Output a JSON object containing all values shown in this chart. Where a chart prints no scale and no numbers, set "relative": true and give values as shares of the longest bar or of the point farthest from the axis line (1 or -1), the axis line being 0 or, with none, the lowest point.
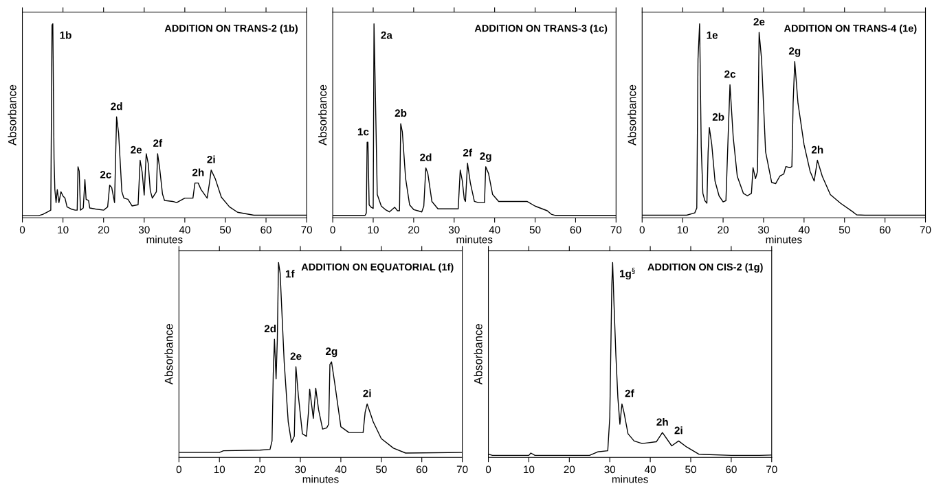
{
  "chart_data": [
    {
      "type": "line",
      "title": "ADDITION ON TRANS-2 (1b)",
      "xlabel": "minutes",
      "ylabel": "Absorbance",
      "relative": true,
      "color": "#000000",
      "xlim": [
        0,
        70
      ],
      "xticks": [
        0,
        10,
        20,
        30,
        40,
        50,
        60,
        70
      ],
      "x": [
        0,
        4,
        5,
        6,
        7,
        7.3,
        7.5,
        7.8,
        8.0,
        8.3,
        8.6,
        9,
        9.5,
        10,
        10.5,
        11,
        12,
        13,
        13.5,
        13.7,
        14,
        14.3,
        15,
        15.4,
        15.7,
        16.3,
        16.6,
        18,
        20,
        21,
        21.5,
        22,
        22.7,
        23.2,
        23.7,
        24.5,
        25,
        26,
        27,
        28.5,
        29,
        29.5,
        30,
        30.5,
        31,
        31.5,
        32,
        33,
        33.3,
        33.8,
        34.5,
        35,
        37,
        38,
        40,
        42,
        42.5,
        43.3,
        44,
        45.5,
        46,
        46.5,
        47.5,
        49,
        51,
        53,
        57,
        70
      ],
      "values": [
        0.011,
        0.011,
        0.017,
        0.028,
        0.039,
        0.994,
        1,
        0.302,
        0.145,
        0.078,
        0.145,
        0.078,
        0.134,
        0.112,
        0.101,
        0.056,
        0.045,
        0.039,
        0.039,
        0.263,
        0.24,
        0.039,
        0.05,
        0.196,
        0.095,
        0.089,
        0.05,
        0.045,
        0.039,
        0.056,
        0.168,
        0.156,
        0.078,
        0.52,
        0.436,
        0.134,
        0.101,
        0.095,
        0.061,
        0.067,
        0.296,
        0.235,
        0.117,
        0.33,
        0.279,
        0.14,
        0.101,
        0.134,
        0.33,
        0.257,
        0.123,
        0.089,
        0.084,
        0.078,
        0.101,
        0.101,
        0.179,
        0.179,
        0.145,
        0.101,
        0.168,
        0.246,
        0.201,
        0.106,
        0.056,
        0.028,
        0.013,
        0.013
      ],
      "annotations": [
        {
          "text": "1b",
          "x": 7.5,
          "y": 1
        },
        {
          "text": "2c",
          "x": 21.5,
          "y": 0.168
        },
        {
          "text": "2d",
          "x": 23.2,
          "y": 0.52
        },
        {
          "text": "2e",
          "x": 29,
          "y": 0.296
        },
        {
          "text": "2f",
          "x": 33.3,
          "y": 0.33
        },
        {
          "text": "2h",
          "x": 43.3,
          "y": 0.179
        },
        {
          "text": "2i",
          "x": 46.5,
          "y": 0.246
        }
      ]
    },
    {
      "type": "line",
      "title": "ADDITION ON TRANS-3 (1c)",
      "xlabel": "minutes",
      "ylabel": "Absorbance",
      "relative": true,
      "color": "#000000",
      "xlim": [
        0,
        70
      ],
      "xticks": [
        0,
        10,
        20,
        30,
        40,
        50,
        60,
        70
      ],
      "x": [
        0,
        8,
        8.3,
        8.5,
        8.7,
        9,
        9.5,
        10,
        10.2,
        10.5,
        11,
        12,
        13,
        14,
        15.3,
        16,
        16.5,
        16.8,
        17.2,
        18,
        19,
        20,
        21,
        22,
        22.5,
        23,
        23.5,
        24.5,
        26,
        31,
        31.5,
        32,
        32.5,
        32.8,
        33.3,
        34,
        35,
        36,
        37.5,
        37.8,
        38.5,
        39.5,
        41,
        48,
        50,
        53,
        54,
        55,
        70
      ],
      "values": [
        0.012,
        0.012,
        0.024,
        0.389,
        0.389,
        0.066,
        0.054,
        0.048,
        1,
        0.683,
        0.12,
        0.06,
        0.042,
        0.03,
        0.054,
        0.036,
        0.036,
        0.485,
        0.443,
        0.204,
        0.066,
        0.042,
        0.036,
        0.03,
        0.06,
        0.257,
        0.228,
        0.084,
        0.046,
        0.046,
        0.246,
        0.192,
        0.096,
        0.084,
        0.281,
        0.18,
        0.084,
        0.078,
        0.078,
        0.263,
        0.228,
        0.12,
        0.084,
        0.084,
        0.06,
        0.036,
        0.018,
        0.012,
        0.012
      ],
      "annotations": [
        {
          "text": "1c",
          "x": 8.5,
          "y": 0.389
        },
        {
          "text": "2a",
          "x": 10.2,
          "y": 1
        },
        {
          "text": "2b",
          "x": 16.8,
          "y": 0.485
        },
        {
          "text": "2d",
          "x": 23,
          "y": 0.257
        },
        {
          "text": "2f",
          "x": 33.3,
          "y": 0.281
        },
        {
          "text": "2g",
          "x": 37.8,
          "y": 0.263
        }
      ]
    },
    {
      "type": "line",
      "title": "ADDITION ON TRANS-4 (1e)",
      "xlabel": "minutes",
      "ylabel": "Absorbance",
      "relative": true,
      "color": "#000000",
      "xlim": [
        0,
        70
      ],
      "xticks": [
        0,
        10,
        20,
        30,
        40,
        50,
        60,
        70
      ],
      "x": [
        0,
        11,
        13,
        13.5,
        13.8,
        14.2,
        14.6,
        15,
        15.5,
        16,
        16.3,
        16.6,
        17.2,
        18,
        19,
        20,
        20.7,
        21.3,
        21.7,
        22.5,
        23.5,
        25,
        26,
        27,
        27.4,
        28,
        28.5,
        28.9,
        29.5,
        30.5,
        32,
        33,
        34,
        35,
        35.5,
        36.5,
        37,
        37.3,
        37.7,
        38.5,
        40,
        41.5,
        42.5,
        43.3,
        44.5,
        46.5,
        49,
        52,
        53,
        55,
        70
      ],
      "values": [
        0.013,
        0.013,
        0.025,
        0.05,
        0.818,
        1,
        0.365,
        0.126,
        0.088,
        0.075,
        0.34,
        0.465,
        0.377,
        0.189,
        0.113,
        0.082,
        0.088,
        0.453,
        0.686,
        0.415,
        0.214,
        0.126,
        0.113,
        0.126,
        0.258,
        0.201,
        0.239,
        0.956,
        0.818,
        0.34,
        0.182,
        0.176,
        0.214,
        0.226,
        0.264,
        0.258,
        0.264,
        0.591,
        0.805,
        0.591,
        0.377,
        0.239,
        0.189,
        0.296,
        0.214,
        0.119,
        0.075,
        0.031,
        0.015,
        0.013,
        0.013
      ],
      "annotations": [
        {
          "text": "1e",
          "x": 14.2,
          "y": 1
        },
        {
          "text": "2b",
          "x": 16.6,
          "y": 0.465
        },
        {
          "text": "2c",
          "x": 21.7,
          "y": 0.686
        },
        {
          "text": "2e",
          "x": 28.9,
          "y": 0.956
        },
        {
          "text": "2g",
          "x": 37.7,
          "y": 0.805
        },
        {
          "text": "2h",
          "x": 43.3,
          "y": 0.296
        }
      ]
    },
    {
      "type": "line",
      "title": "ADDITION ON EQUATORIAL (1f)",
      "xlabel": "minutes",
      "ylabel": "Absorbance",
      "relative": true,
      "color": "#000000",
      "xlim": [
        0,
        70
      ],
      "xticks": [
        0,
        10,
        20,
        30,
        40,
        50,
        60,
        70
      ],
      "x": [
        0,
        10,
        11,
        20,
        22.5,
        23,
        23.3,
        23.6,
        24,
        24.3,
        24.6,
        25,
        26,
        27,
        27.8,
        28.5,
        28.9,
        29.5,
        30.5,
        31.5,
        32,
        32.3,
        33.2,
        33.8,
        34.5,
        35.5,
        36.5,
        37,
        37.3,
        37.7,
        38.5,
        40,
        42,
        44,
        45.5,
        46,
        46.5,
        48,
        50,
        53,
        56,
        70
      ],
      "values": [
        0.025,
        0.025,
        0.034,
        0.037,
        0.041,
        0.084,
        0.428,
        0.606,
        0.403,
        0.6,
        1,
        0.945,
        0.49,
        0.182,
        0.077,
        0.108,
        0.465,
        0.317,
        0.121,
        0.108,
        0.231,
        0.349,
        0.2,
        0.355,
        0.244,
        0.145,
        0.151,
        0.17,
        0.477,
        0.49,
        0.379,
        0.157,
        0.127,
        0.127,
        0.127,
        0.231,
        0.274,
        0.182,
        0.096,
        0.047,
        0.022,
        0.025
      ],
      "annotations": [
        {
          "text": "1f",
          "x": 24.6,
          "y": 1
        },
        {
          "text": "2d",
          "x": 23.6,
          "y": 0.606
        },
        {
          "text": "2e",
          "x": 28.9,
          "y": 0.465
        },
        {
          "text": "2g",
          "x": 37.7,
          "y": 0.49
        },
        {
          "text": "2i",
          "x": 46.5,
          "y": 0.274
        }
      ]
    },
    {
      "type": "line",
      "title": "ADDITION ON CIS-2 (1g)",
      "xlabel": "minutes",
      "ylabel": "Absorbance",
      "relative": true,
      "color": "#000000",
      "xlim": [
        0,
        70
      ],
      "xticks": [
        0,
        10,
        20,
        30,
        40,
        50,
        60,
        70
      ],
      "x": [
        0,
        1,
        10,
        10.5,
        11.5,
        25,
        27,
        29.5,
        30,
        30.5,
        30.7,
        31,
        31.5,
        32,
        32.5,
        33,
        33.5,
        34.5,
        36,
        38,
        41.5,
        43,
        45.3,
        47,
        49,
        52,
        60,
        67,
        70
      ],
      "values": [
        0.016,
        0.01,
        0.01,
        0.022,
        0.01,
        0.01,
        0.028,
        0.034,
        0.207,
        0.883,
        1,
        0.809,
        0.526,
        0.305,
        0.17,
        0.274,
        0.231,
        0.121,
        0.084,
        0.071,
        0.08,
        0.127,
        0.059,
        0.084,
        0.053,
        0.016,
        0.01,
        0.01,
        0.012
      ],
      "annotations": [
        {
          "text": "1g$^{§}$",
          "x": 30.7,
          "y": 1
        },
        {
          "text": "2f",
          "x": 33,
          "y": 0.274
        },
        {
          "text": "2h",
          "x": 43,
          "y": 0.127
        },
        {
          "text": "2i",
          "x": 47,
          "y": 0.084
        }
      ]
    }
  ]
}
